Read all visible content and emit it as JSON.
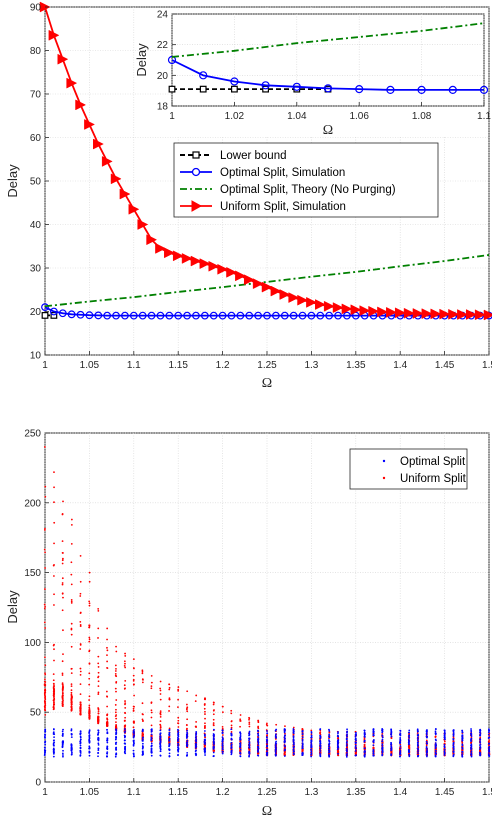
{
  "chart_data": [
    {
      "id": "top",
      "type": "line",
      "xlabel": "Ω",
      "ylabel": "Delay",
      "xlim": [
        1,
        1.5
      ],
      "ylim": [
        10,
        90
      ],
      "xticks": [
        "1",
        "1.05",
        "1.1",
        "1.15",
        "1.2",
        "1.25",
        "1.3",
        "1.35",
        "1.4",
        "1.45",
        "1.5"
      ],
      "yticks": [
        "10",
        "20",
        "30",
        "40",
        "50",
        "60",
        "70",
        "80",
        "90"
      ],
      "grid": true,
      "legend_position": "center-right",
      "series": [
        {
          "name": "Lower bound",
          "color": "#000000",
          "style": "dashed",
          "marker": "square",
          "x": [
            1,
            1.01
          ],
          "y": [
            19.1,
            19.1
          ]
        },
        {
          "name": "Optimal Split, Simulation",
          "color": "#0000ff",
          "style": "solid",
          "marker": "circle",
          "x": [
            1,
            1.01,
            1.02,
            1.03,
            1.04,
            1.05,
            1.06,
            1.07,
            1.08,
            1.09,
            1.1,
            1.11,
            1.12,
            1.13,
            1.14,
            1.15,
            1.16,
            1.17,
            1.18,
            1.19,
            1.2,
            1.21,
            1.22,
            1.23,
            1.24,
            1.25,
            1.26,
            1.27,
            1.28,
            1.29,
            1.3,
            1.31,
            1.32,
            1.33,
            1.34,
            1.35,
            1.36,
            1.37,
            1.38,
            1.39,
            1.4,
            1.41,
            1.42,
            1.43,
            1.44,
            1.45,
            1.46,
            1.47,
            1.48,
            1.49,
            1.5
          ],
          "y": [
            21,
            20,
            19.6,
            19.35,
            19.25,
            19.15,
            19.1,
            19.05,
            19.05,
            19.05,
            19.05,
            19.05,
            19.05,
            19.05,
            19.05,
            19.05,
            19.05,
            19.05,
            19.05,
            19.05,
            19.05,
            19.05,
            19.05,
            19.05,
            19.05,
            19.05,
            19.05,
            19.05,
            19.05,
            19.05,
            19.05,
            19.05,
            19.05,
            19.05,
            19.05,
            19.05,
            19.05,
            19.05,
            19.05,
            19.05,
            19.05,
            19.05,
            19.05,
            19.05,
            19.05,
            19.05,
            19.05,
            19.05,
            19.05,
            19.05,
            19.05
          ]
        },
        {
          "name": "Optimal Split, Theory (No Purging)",
          "color": "#008000",
          "style": "dashdot",
          "marker": "none",
          "x": [
            1,
            1.05,
            1.1,
            1.15,
            1.2,
            1.25,
            1.3,
            1.35,
            1.4,
            1.45,
            1.5
          ],
          "y": [
            21.2,
            22.3,
            23.3,
            24.5,
            25.6,
            26.8,
            28.0,
            29.1,
            30.4,
            31.6,
            33.0
          ]
        },
        {
          "name": "Uniform Split, Simulation",
          "color": "#ff0000",
          "style": "solid",
          "marker": "triangle-right",
          "x": [
            1,
            1.01,
            1.02,
            1.03,
            1.04,
            1.05,
            1.06,
            1.07,
            1.08,
            1.09,
            1.1,
            1.11,
            1.12,
            1.13,
            1.14,
            1.15,
            1.16,
            1.17,
            1.18,
            1.19,
            1.2,
            1.21,
            1.22,
            1.23,
            1.24,
            1.25,
            1.26,
            1.27,
            1.28,
            1.29,
            1.3,
            1.31,
            1.32,
            1.33,
            1.34,
            1.35,
            1.36,
            1.37,
            1.38,
            1.39,
            1.4,
            1.41,
            1.42,
            1.43,
            1.44,
            1.45,
            1.46,
            1.47,
            1.48,
            1.49,
            1.5
          ],
          "y": [
            90,
            83.5,
            78,
            72.5,
            67.5,
            63,
            58.5,
            54.5,
            50.5,
            47,
            43.5,
            40,
            36.5,
            34.5,
            33.5,
            32.8,
            32.2,
            31.6,
            31,
            30.4,
            29.7,
            29,
            28.2,
            27.3,
            26.4,
            25.6,
            24.7,
            23.9,
            23.2,
            22.6,
            22.1,
            21.6,
            21.2,
            20.9,
            20.6,
            20.4,
            20.2,
            20.05,
            19.9,
            19.8,
            19.7,
            19.6,
            19.55,
            19.5,
            19.45,
            19.4,
            19.35,
            19.3,
            19.3,
            19.25,
            19.2
          ]
        }
      ]
    },
    {
      "id": "inset",
      "type": "line",
      "xlabel": "Ω",
      "ylabel": "Delay",
      "xlim": [
        1,
        1.1
      ],
      "ylim": [
        18,
        24
      ],
      "xticks": [
        "1",
        "1.02",
        "1.04",
        "1.06",
        "1.08",
        "1.1"
      ],
      "yticks": [
        "18",
        "20",
        "22",
        "24"
      ],
      "grid": true,
      "series": [
        {
          "name": "Lower bound",
          "color": "#000000",
          "style": "dashed",
          "marker": "square",
          "x": [
            1,
            1.01,
            1.02,
            1.03,
            1.04,
            1.05
          ],
          "y": [
            19.1,
            19.1,
            19.1,
            19.1,
            19.1,
            19.1
          ]
        },
        {
          "name": "Optimal Split, Simulation",
          "color": "#0000ff",
          "style": "solid",
          "marker": "circle",
          "x": [
            1,
            1.01,
            1.02,
            1.03,
            1.04,
            1.05,
            1.06,
            1.07,
            1.08,
            1.09,
            1.1
          ],
          "y": [
            21,
            20,
            19.6,
            19.35,
            19.25,
            19.15,
            19.1,
            19.05,
            19.05,
            19.05,
            19.05
          ]
        },
        {
          "name": "Optimal Split, Theory (No Purging)",
          "color": "#008000",
          "style": "dashdot",
          "marker": "none",
          "x": [
            1,
            1.02,
            1.04,
            1.06,
            1.08,
            1.1
          ],
          "y": [
            21.2,
            21.6,
            22.1,
            22.5,
            22.9,
            23.4
          ]
        }
      ]
    },
    {
      "id": "bottom",
      "type": "scatter",
      "xlabel": "Ω",
      "ylabel": "Delay",
      "xlim": [
        1,
        1.5
      ],
      "ylim": [
        0,
        250
      ],
      "xticks": [
        "1",
        "1.05",
        "1.1",
        "1.15",
        "1.2",
        "1.25",
        "1.3",
        "1.35",
        "1.4",
        "1.45",
        "1.5"
      ],
      "yticks": [
        "0",
        "50",
        "100",
        "150",
        "200",
        "250"
      ],
      "grid": true,
      "legend_position": "top-right",
      "series": [
        {
          "name": "Optimal Split",
          "color": "#0000ff",
          "marker": "dot",
          "x_start": 1,
          "x_step": 0.01,
          "y_min": 18,
          "y_max": 38
        },
        {
          "name": "Uniform Split",
          "color": "#ff0000",
          "marker": "dot",
          "x_start": 1,
          "x_step": 0.01,
          "y_min": [
            48,
            52,
            54,
            51,
            48,
            45,
            42,
            40,
            37,
            35,
            32,
            30,
            29,
            28,
            27,
            26,
            25,
            24,
            23,
            22,
            21,
            21,
            20,
            20,
            20,
            19,
            19,
            19,
            19,
            19,
            19,
            19,
            19,
            19,
            19,
            19,
            19,
            19,
            19,
            19,
            19,
            19,
            19,
            19,
            19,
            19,
            19,
            19,
            19,
            19,
            19
          ],
          "y_lower": [
            72,
            68,
            70,
            62,
            56,
            51,
            47,
            43,
            40,
            38,
            36,
            35,
            34,
            33,
            32,
            31,
            30,
            30,
            29,
            29,
            28,
            28,
            28,
            27,
            27,
            27,
            26,
            26,
            26,
            26,
            25,
            25,
            25,
            25,
            25,
            25,
            25,
            24,
            24,
            24,
            24,
            24,
            24,
            24,
            24,
            24,
            24,
            24,
            24,
            24,
            24
          ],
          "y_max": [
            240,
            222,
            201,
            188,
            162,
            150,
            124,
            110,
            97,
            92,
            88,
            80,
            76,
            72,
            70,
            68,
            65,
            62,
            60,
            57,
            54,
            51,
            48,
            46,
            44,
            42,
            41,
            40,
            39,
            38,
            37,
            37,
            36,
            36,
            36,
            36,
            35,
            35,
            35,
            35,
            35,
            35,
            35,
            35,
            35,
            35,
            35,
            35,
            35,
            35,
            35
          ]
        }
      ]
    }
  ]
}
